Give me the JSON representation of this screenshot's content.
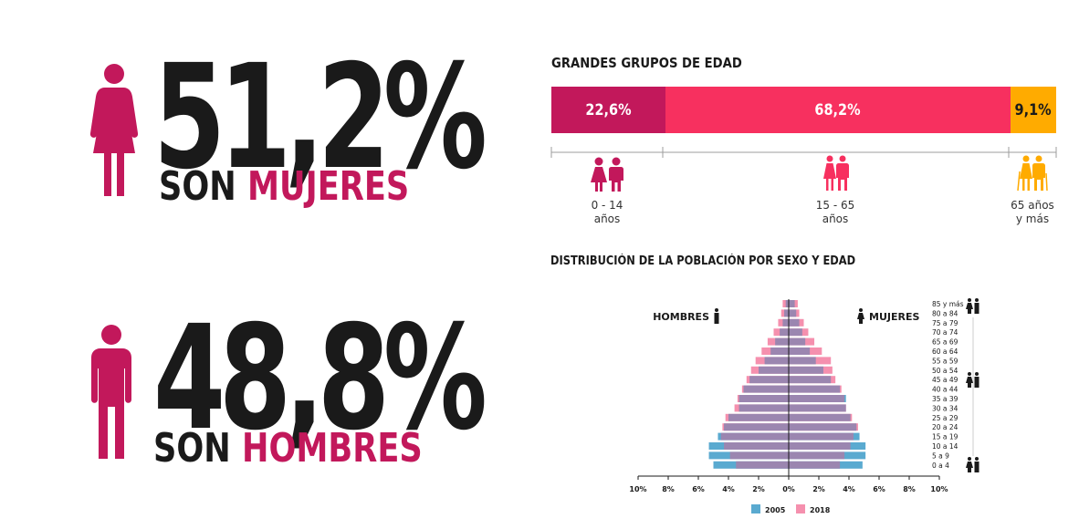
{
  "women": {
    "value": "51,2%",
    "label_prefix": "SON ",
    "label_accent": "MUJERES"
  },
  "men": {
    "value": "48,8%",
    "label_prefix": "SON ",
    "label_accent": "HOMBRES"
  },
  "colors": {
    "accent": "#c2185b",
    "pink": "#f7305f",
    "orange": "#ffab00",
    "blue_2005": "#5aaad0",
    "pink_2018": "#f590ae",
    "overlap": "#9b86b0"
  },
  "age_groups": {
    "title": "GRANDES GRUPOS DE EDAD",
    "segments": [
      {
        "label": "22,6%",
        "value": 22.6,
        "color": "#c2185b",
        "range_line1": "0 - 14",
        "range_line2": "años",
        "icon": "child-couple-icon"
      },
      {
        "label": "68,2%",
        "value": 68.2,
        "color": "#f7305f",
        "range_line1": "15 - 65",
        "range_line2": "años",
        "icon": "adult-couple-icon"
      },
      {
        "label": "9,1%",
        "value": 9.1,
        "color": "#ffab00",
        "range_line1": "65 años",
        "range_line2": "y más",
        "icon": "elderly-couple-icon"
      }
    ]
  },
  "chart_data": {
    "type": "bar",
    "subtype": "population-pyramid",
    "title": "DISTRIBUCIÓN DE LA POBLACIÓN POR SEXO Y EDAD",
    "left_label": "HOMBRES",
    "right_label": "MUJERES",
    "xlim": [
      -10,
      10
    ],
    "x_ticks": [
      "10%",
      "8%",
      "6%",
      "4%",
      "2%",
      "0%",
      "2%",
      "4%",
      "6%",
      "8%",
      "10%"
    ],
    "categories": [
      "0 a 4",
      "5 a 9",
      "10 a 14",
      "15 a 19",
      "20 a 24",
      "25 a 29",
      "30 a 34",
      "35 a 39",
      "40 a 44",
      "45 a 49",
      "50 a 54",
      "55 a 59",
      "60 a 64",
      "65 a 69",
      "70 a 74",
      "75 a 79",
      "80 a 84",
      "85 y más"
    ],
    "series": [
      {
        "name": "2005",
        "color": "#5aaad0",
        "men": [
          5.0,
          5.3,
          5.3,
          4.7,
          4.3,
          4.0,
          3.3,
          3.3,
          3.0,
          2.6,
          2.0,
          1.6,
          1.2,
          0.9,
          0.6,
          0.4,
          0.3,
          0.2
        ],
        "women": [
          4.9,
          5.1,
          5.1,
          4.7,
          4.5,
          4.1,
          3.8,
          3.8,
          3.4,
          2.8,
          2.3,
          1.8,
          1.4,
          1.1,
          0.9,
          0.7,
          0.5,
          0.4
        ]
      },
      {
        "name": "2018",
        "color": "#f590ae",
        "men": [
          3.5,
          3.9,
          4.3,
          4.5,
          4.4,
          4.2,
          3.6,
          3.4,
          3.1,
          2.8,
          2.5,
          2.2,
          1.8,
          1.4,
          1.0,
          0.7,
          0.5,
          0.4
        ],
        "women": [
          3.4,
          3.7,
          4.1,
          4.3,
          4.6,
          4.2,
          3.8,
          3.7,
          3.5,
          3.1,
          2.9,
          2.8,
          2.2,
          1.7,
          1.3,
          1.0,
          0.7,
          0.6
        ]
      }
    ],
    "legend": "bottom-center",
    "grid": false
  }
}
